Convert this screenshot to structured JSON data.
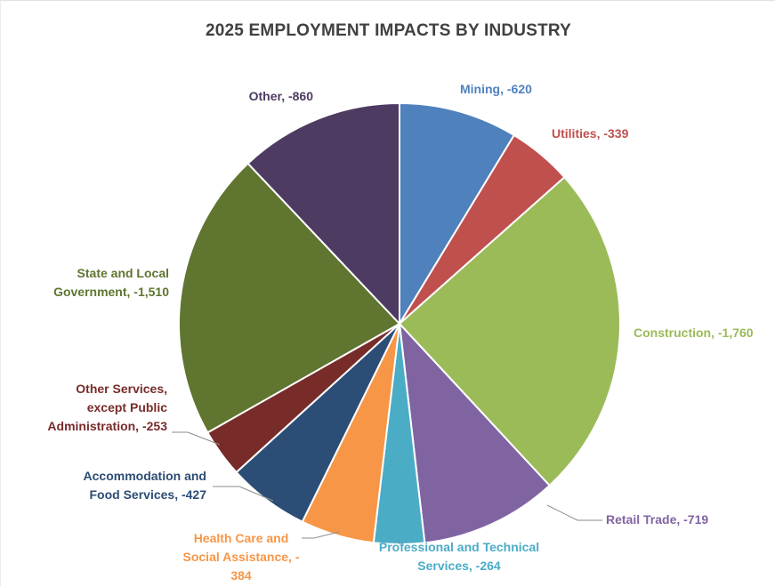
{
  "chart_data": {
    "type": "pie",
    "title": "2025 EMPLOYMENT IMPACTS BY INDUSTRY",
    "units": "jobs",
    "slices": [
      {
        "category": "Mining",
        "value": -620,
        "color": "#4f81bd",
        "label_lines": [
          "Mining, -620"
        ]
      },
      {
        "category": "Utilities",
        "value": -339,
        "color": "#c0504d",
        "label_lines": [
          "Utilities, -339"
        ]
      },
      {
        "category": "Construction",
        "value": -1760,
        "color": "#9bbb59",
        "label_lines": [
          "Construction, -1,760"
        ]
      },
      {
        "category": "Retail Trade",
        "value": -719,
        "color": "#8064a2",
        "label_lines": [
          "Retail Trade, -719"
        ]
      },
      {
        "category": "Professional and Technical Services",
        "value": -264,
        "color": "#4bacc6",
        "label_lines": [
          "Professional and Technical",
          "Services, -264"
        ]
      },
      {
        "category": "Health Care and Social Assistance",
        "value": -384,
        "color": "#f79646",
        "label_lines": [
          "Health Care and",
          "Social Assistance, -",
          "384"
        ]
      },
      {
        "category": "Accommodation and Food Services",
        "value": -427,
        "color": "#2c4d75",
        "label_lines": [
          "Accommodation and",
          "Food Services, -427"
        ]
      },
      {
        "category": "Other Services, except Public Administration",
        "value": -253,
        "color": "#772c2a",
        "label_lines": [
          "Other Services,",
          "except Public",
          "Administration, -253"
        ]
      },
      {
        "category": "State and Local Government",
        "value": -1510,
        "color": "#5f7530",
        "label_lines": [
          "State and Local",
          "Government, -1,510"
        ]
      },
      {
        "category": "Other",
        "value": -860,
        "color": "#4d3b62",
        "label_lines": [
          "Other, -860"
        ]
      }
    ],
    "label_colors": [
      "#4f81bd",
      "#c0504d",
      "#9bbb59",
      "#8064a2",
      "#4bacc6",
      "#f79646",
      "#2c4d75",
      "#772c2a",
      "#5f7530",
      "#4d3b62"
    ],
    "legend": "none",
    "data_labels": "outside"
  }
}
